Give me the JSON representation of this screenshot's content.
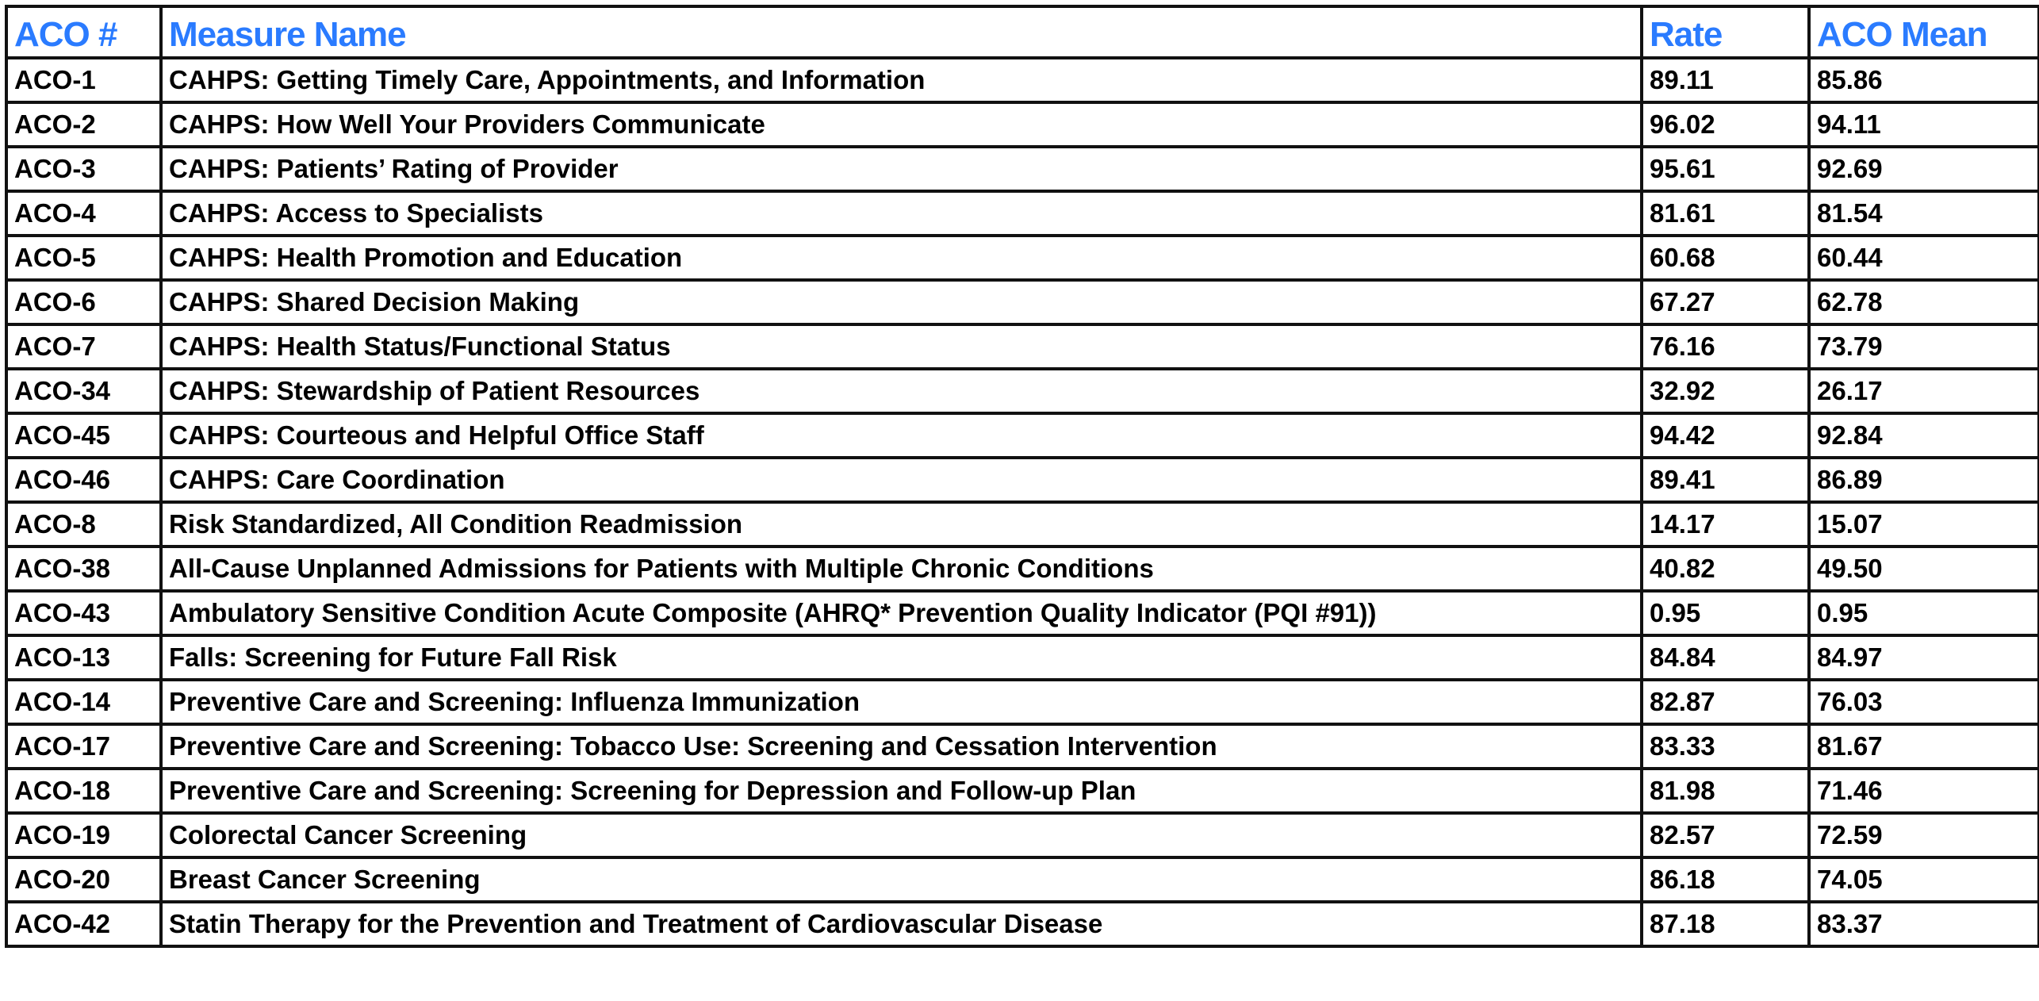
{
  "header_color": "#2a7bff",
  "columns": [
    "ACO #",
    "Measure Name",
    "Rate",
    "ACO Mean"
  ],
  "rows": [
    [
      "ACO-1",
      "CAHPS: Getting Timely Care, Appointments, and Information",
      "89.11",
      "85.86"
    ],
    [
      "ACO-2",
      "CAHPS: How Well Your Providers Communicate",
      "96.02",
      "94.11"
    ],
    [
      "ACO-3",
      "CAHPS: Patients’ Rating of Provider",
      "95.61",
      "92.69"
    ],
    [
      "ACO-4",
      "CAHPS: Access to Specialists",
      "81.61",
      "81.54"
    ],
    [
      "ACO-5",
      "CAHPS: Health Promotion and Education",
      "60.68",
      "60.44"
    ],
    [
      "ACO-6",
      "CAHPS: Shared Decision Making",
      "67.27",
      "62.78"
    ],
    [
      "ACO-7",
      "CAHPS: Health Status/Functional Status",
      "76.16",
      "73.79"
    ],
    [
      "ACO-34",
      "CAHPS: Stewardship of Patient Resources",
      "32.92",
      "26.17"
    ],
    [
      "ACO-45",
      "CAHPS: Courteous and Helpful Office Staff",
      "94.42",
      "92.84"
    ],
    [
      "ACO-46",
      "CAHPS: Care Coordination",
      "89.41",
      "86.89"
    ],
    [
      "ACO-8",
      "Risk Standardized, All Condition Readmission",
      "14.17",
      "15.07"
    ],
    [
      "ACO-38",
      "All-Cause Unplanned Admissions for Patients with Multiple Chronic Conditions",
      "40.82",
      "49.50"
    ],
    [
      "ACO-43",
      "Ambulatory Sensitive Condition Acute Composite (AHRQ* Prevention Quality Indicator (PQI #91))",
      "0.95",
      "0.95"
    ],
    [
      "ACO-13",
      "Falls: Screening for Future Fall Risk",
      "84.84",
      "84.97"
    ],
    [
      "ACO-14",
      "Preventive Care and Screening: Influenza Immunization",
      "82.87",
      "76.03"
    ],
    [
      "ACO-17",
      "Preventive Care and Screening: Tobacco Use: Screening and Cessation Intervention",
      "83.33",
      "81.67"
    ],
    [
      "ACO-18",
      "Preventive Care and Screening: Screening for Depression and Follow-up Plan",
      "81.98",
      "71.46"
    ],
    [
      "ACO-19",
      "Colorectal Cancer Screening",
      "82.57",
      "72.59"
    ],
    [
      "ACO-20",
      "Breast Cancer Screening",
      "86.18",
      "74.05"
    ],
    [
      "ACO-42",
      "Statin Therapy for the Prevention and Treatment of Cardiovascular Disease",
      "87.18",
      "83.37"
    ]
  ]
}
